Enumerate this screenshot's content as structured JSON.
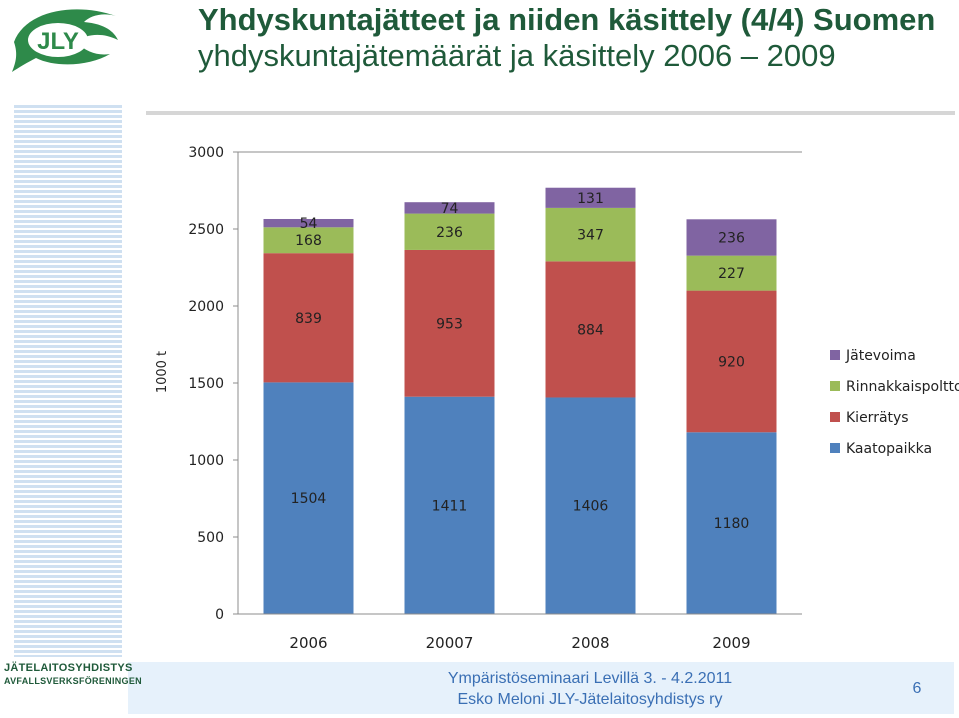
{
  "title": {
    "line1": "Yhdyskuntajätteet ja niiden käsittely (4/4) Suomen",
    "line2": "yhdyskuntajätemäärät ja käsittely 2006 – 2009"
  },
  "logo": {
    "text": "JLY",
    "icon": "fish-logo-icon"
  },
  "organization": {
    "line1": "JÄTELAITOSYHDISTYS",
    "line2": "AVFALLSVERKSFÖRENINGEN"
  },
  "footer": {
    "line1": "Ympäristöseminaari Levillä 3. - 4.2.2011",
    "line2": "Esko Meloni JLY-Jätelaitosyhdistys ry",
    "page_number": "6"
  },
  "colors": {
    "kaatopaikka": "#4f81bd",
    "kierratys": "#c0504d",
    "rinnakkaispoltto": "#9bbb59",
    "jatevoima": "#8064a2",
    "title": "#1f5a3a",
    "footer_text": "#3a6fb4"
  },
  "chart_data": {
    "type": "bar",
    "stacked": true,
    "categories": [
      "2006",
      "20007",
      "2008",
      "2009"
    ],
    "ylabel": "1000 t",
    "xlabel": "",
    "ylim": [
      0,
      3000
    ],
    "yticks": [
      "0",
      "500",
      "1000",
      "1500",
      "2000",
      "2500",
      "3000"
    ],
    "grid": "horizontal top line only",
    "legend_position": "right",
    "series": [
      {
        "name": "Kaatopaikka",
        "values": [
          1504,
          1411,
          1406,
          1180
        ],
        "color": "#4f81bd"
      },
      {
        "name": "Kierrätys",
        "values": [
          839,
          953,
          884,
          920
        ],
        "color": "#c0504d"
      },
      {
        "name": "Rinnakkaispoltto",
        "values": [
          168,
          236,
          347,
          227
        ],
        "color": "#9bbb59"
      },
      {
        "name": "Jätevoima",
        "values": [
          54,
          74,
          131,
          236
        ],
        "color": "#8064a2"
      }
    ],
    "legend_order": [
      "Jätevoima",
      "Rinnakkaispoltto",
      "Kierrätys",
      "Kaatopaikka"
    ]
  }
}
